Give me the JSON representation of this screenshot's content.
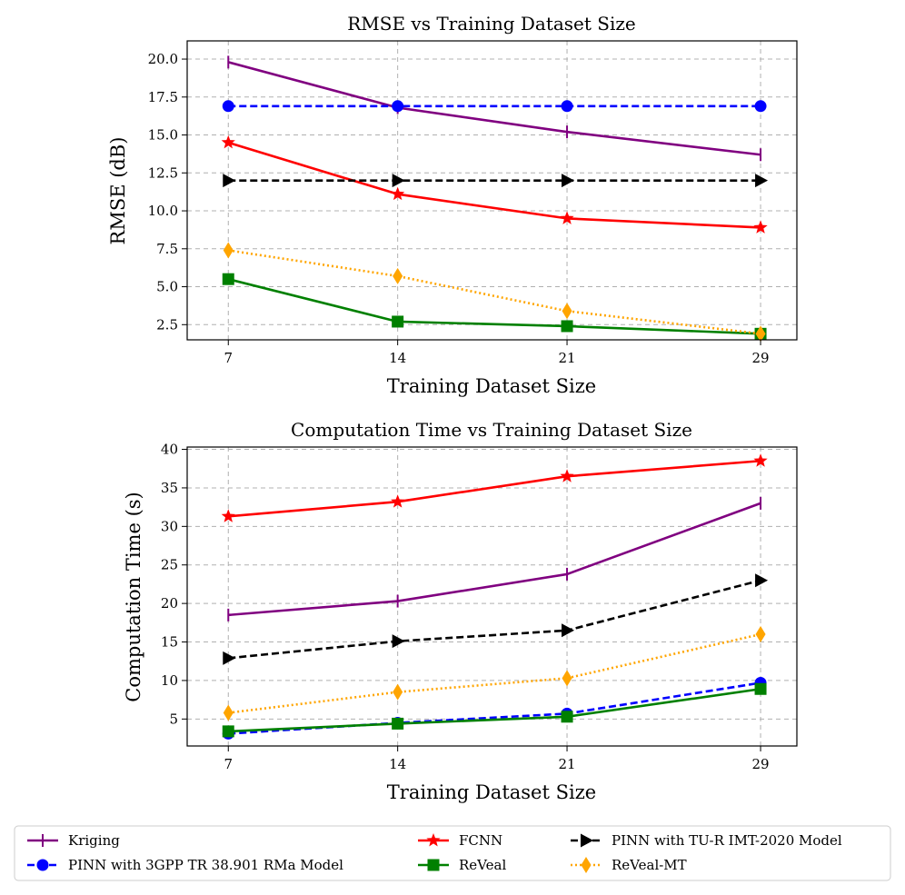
{
  "legend": {
    "placement": "bottom-center",
    "entries": [
      {
        "name": "Kriging",
        "color": "#800080",
        "marker": "vline",
        "linestyle": "solid"
      },
      {
        "name": "PINN with 3GPP TR 38.901 RMa Model",
        "color": "#0000ff",
        "marker": "circle",
        "linestyle": "dashed"
      },
      {
        "name": "FCNN",
        "color": "#ff0000",
        "marker": "star",
        "linestyle": "solid"
      },
      {
        "name": "ReVeal",
        "color": "#008000",
        "marker": "square",
        "linestyle": "solid"
      },
      {
        "name": "PINN with TU-R IMT-2020 Model",
        "color": "#000000",
        "marker": "triangle-right",
        "linestyle": "dashed"
      },
      {
        "name": "ReVeal-MT",
        "color": "#ffa500",
        "marker": "diamond",
        "linestyle": "dotted"
      }
    ]
  },
  "chart_data": [
    {
      "type": "line",
      "title": "RMSE vs Training Dataset Size",
      "xlabel": "Training Dataset Size",
      "ylabel": "RMSE (dB)",
      "x": [
        7,
        14,
        21,
        29
      ],
      "xticks": [
        "7",
        "14",
        "21",
        "29"
      ],
      "xlim": [
        5.3,
        30.5
      ],
      "ylim": [
        1.5,
        21.2
      ],
      "yticks": [
        "2.5",
        "5.0",
        "7.5",
        "10.0",
        "12.5",
        "15.0",
        "17.5",
        "20.0"
      ],
      "grid": true,
      "series": [
        {
          "name": "Kriging",
          "values": [
            19.8,
            16.8,
            15.2,
            13.7
          ]
        },
        {
          "name": "PINN with 3GPP TR 38.901 RMa Model",
          "values": [
            16.9,
            16.9,
            16.9,
            16.9
          ]
        },
        {
          "name": "FCNN",
          "values": [
            14.5,
            11.1,
            9.5,
            8.9
          ]
        },
        {
          "name": "ReVeal",
          "values": [
            5.5,
            2.7,
            2.4,
            1.9
          ]
        },
        {
          "name": "PINN with TU-R IMT-2020 Model",
          "values": [
            12.0,
            12.0,
            12.0,
            12.0
          ]
        },
        {
          "name": "ReVeal-MT",
          "values": [
            7.4,
            5.7,
            3.4,
            1.9
          ]
        }
      ]
    },
    {
      "type": "line",
      "title": "Computation Time vs Training Dataset Size",
      "xlabel": "Training Dataset Size",
      "ylabel": "Computation Time (s)",
      "x": [
        7,
        14,
        21,
        29
      ],
      "xticks": [
        "7",
        "14",
        "21",
        "29"
      ],
      "xlim": [
        5.3,
        30.5
      ],
      "ylim": [
        1.5,
        40.3
      ],
      "yticks": [
        "5",
        "10",
        "15",
        "20",
        "25",
        "30",
        "35",
        "40"
      ],
      "grid": true,
      "series": [
        {
          "name": "Kriging",
          "values": [
            18.5,
            20.3,
            23.8,
            33.0
          ]
        },
        {
          "name": "PINN with 3GPP TR 38.901 RMa Model",
          "values": [
            3.1,
            4.5,
            5.7,
            9.7
          ]
        },
        {
          "name": "FCNN",
          "values": [
            31.3,
            33.2,
            36.5,
            38.5
          ]
        },
        {
          "name": "ReVeal",
          "values": [
            3.4,
            4.4,
            5.3,
            8.9
          ]
        },
        {
          "name": "PINN with TU-R IMT-2020 Model",
          "values": [
            12.9,
            15.1,
            16.5,
            23.0
          ]
        },
        {
          "name": "ReVeal-MT",
          "values": [
            5.8,
            8.5,
            10.3,
            16.0
          ]
        }
      ]
    }
  ]
}
